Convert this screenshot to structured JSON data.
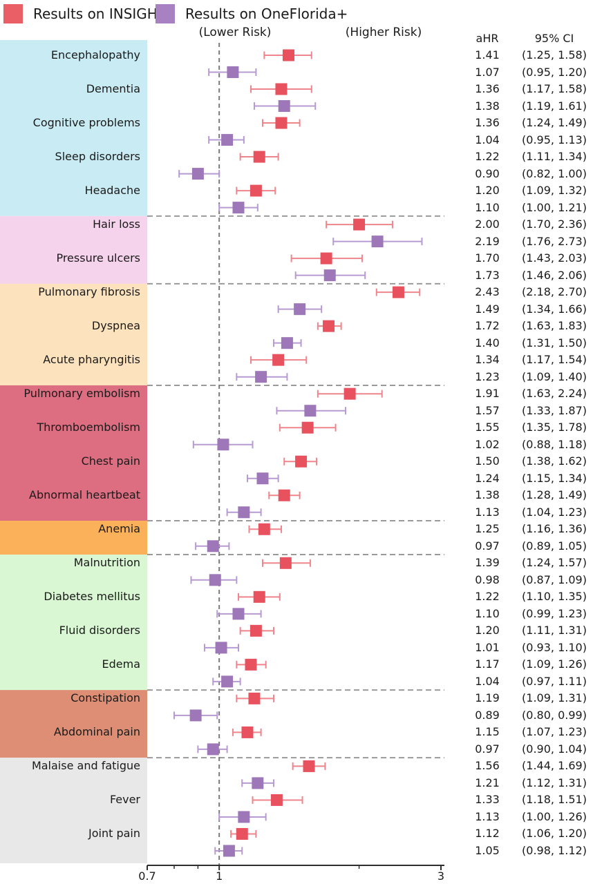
{
  "legend": {
    "items": [
      {
        "label": "Results on INSIGHT",
        "color": "#ea5f66"
      },
      {
        "label": "Results on OneFlorida+",
        "color": "#a781c1"
      }
    ]
  },
  "annotations": {
    "lower_risk": "(Lower Risk)",
    "higher_risk": "(Higher Risk)"
  },
  "table": {
    "ahr_header": "aHR",
    "ci_header": "95% CI"
  },
  "chart_data": {
    "type": "forest",
    "x_scale": "log",
    "xlim": [
      0.7,
      3
    ],
    "x_ticks": [
      {
        "value": 0.7,
        "label": "0.7"
      },
      {
        "value": 1,
        "label": "1"
      },
      {
        "value": 3,
        "label": "3"
      }
    ],
    "x_minor_ticks": [
      0.8,
      0.9,
      2
    ],
    "reference_line": 1,
    "grid": "dashed-group-separators",
    "legend_position": "top-left",
    "series": [
      {
        "name": "INSIGHT",
        "marker_color": "#e8525e",
        "whisker_color": "#ef858b"
      },
      {
        "name": "OneFlorida+",
        "marker_color": "#9e77b8",
        "whisker_color": "#b79ad2"
      }
    ],
    "groups": [
      {
        "band_color": "#c9ecf4",
        "conditions": [
          {
            "name": "Encephalopathy",
            "estimates": [
              [
                1.41,
                1.25,
                1.58
              ],
              [
                1.07,
                0.95,
                1.2
              ]
            ]
          },
          {
            "name": "Dementia",
            "estimates": [
              [
                1.36,
                1.17,
                1.58
              ],
              [
                1.38,
                1.19,
                1.61
              ]
            ]
          },
          {
            "name": "Cognitive problems",
            "estimates": [
              [
                1.36,
                1.24,
                1.49
              ],
              [
                1.04,
                0.95,
                1.13
              ]
            ]
          },
          {
            "name": "Sleep disorders",
            "estimates": [
              [
                1.22,
                1.11,
                1.34
              ],
              [
                0.9,
                0.82,
                1.0
              ]
            ]
          },
          {
            "name": "Headache",
            "estimates": [
              [
                1.2,
                1.09,
                1.32
              ],
              [
                1.1,
                1.0,
                1.21
              ]
            ]
          }
        ]
      },
      {
        "band_color": "#f5d3ec",
        "conditions": [
          {
            "name": "Hair loss",
            "estimates": [
              [
                2.0,
                1.7,
                2.36
              ],
              [
                2.19,
                1.76,
                2.73
              ]
            ]
          },
          {
            "name": "Pressure ulcers",
            "estimates": [
              [
                1.7,
                1.43,
                2.03
              ],
              [
                1.73,
                1.46,
                2.06
              ]
            ]
          }
        ]
      },
      {
        "band_color": "#fce3bd",
        "conditions": [
          {
            "name": "Pulmonary fibrosis",
            "estimates": [
              [
                2.43,
                2.18,
                2.7
              ],
              [
                1.49,
                1.34,
                1.66
              ]
            ]
          },
          {
            "name": "Dyspnea",
            "estimates": [
              [
                1.72,
                1.63,
                1.83
              ],
              [
                1.4,
                1.31,
                1.5
              ]
            ]
          },
          {
            "name": "Acute pharyngitis",
            "estimates": [
              [
                1.34,
                1.17,
                1.54
              ],
              [
                1.23,
                1.09,
                1.4
              ]
            ]
          }
        ]
      },
      {
        "band_color": "#dd6d80",
        "conditions": [
          {
            "name": "Pulmonary embolism",
            "estimates": [
              [
                1.91,
                1.63,
                2.24
              ],
              [
                1.57,
                1.33,
                1.87
              ]
            ]
          },
          {
            "name": "Thromboembolism",
            "estimates": [
              [
                1.55,
                1.35,
                1.78
              ],
              [
                1.02,
                0.88,
                1.18
              ]
            ]
          },
          {
            "name": "Chest pain",
            "estimates": [
              [
                1.5,
                1.38,
                1.62
              ],
              [
                1.24,
                1.15,
                1.34
              ]
            ]
          },
          {
            "name": "Abnormal heartbeat",
            "estimates": [
              [
                1.38,
                1.28,
                1.49
              ],
              [
                1.13,
                1.04,
                1.23
              ]
            ]
          }
        ]
      },
      {
        "band_color": "#fab159",
        "conditions": [
          {
            "name": "Anemia",
            "estimates": [
              [
                1.25,
                1.16,
                1.36
              ],
              [
                0.97,
                0.89,
                1.05
              ]
            ]
          }
        ]
      },
      {
        "band_color": "#d9f7d3",
        "conditions": [
          {
            "name": "Malnutrition",
            "estimates": [
              [
                1.39,
                1.24,
                1.57
              ],
              [
                0.98,
                0.87,
                1.09
              ]
            ]
          },
          {
            "name": "Diabetes mellitus",
            "estimates": [
              [
                1.22,
                1.1,
                1.35
              ],
              [
                1.1,
                0.99,
                1.23
              ]
            ]
          },
          {
            "name": "Fluid disorders",
            "estimates": [
              [
                1.2,
                1.11,
                1.31
              ],
              [
                1.01,
                0.93,
                1.1
              ]
            ]
          },
          {
            "name": "Edema",
            "estimates": [
              [
                1.17,
                1.09,
                1.26
              ],
              [
                1.04,
                0.97,
                1.11
              ]
            ]
          }
        ]
      },
      {
        "band_color": "#dd8e74",
        "conditions": [
          {
            "name": "Constipation",
            "estimates": [
              [
                1.19,
                1.09,
                1.31
              ],
              [
                0.89,
                0.8,
                0.99
              ]
            ]
          },
          {
            "name": "Abdominal pain",
            "estimates": [
              [
                1.15,
                1.07,
                1.23
              ],
              [
                0.97,
                0.9,
                1.04
              ]
            ]
          }
        ]
      },
      {
        "band_color": "#e8e8e8",
        "conditions": [
          {
            "name": "Malaise and fatigue",
            "estimates": [
              [
                1.56,
                1.44,
                1.69
              ],
              [
                1.21,
                1.12,
                1.31
              ]
            ]
          },
          {
            "name": "Fever",
            "estimates": [
              [
                1.33,
                1.18,
                1.51
              ],
              [
                1.13,
                1.0,
                1.26
              ]
            ]
          },
          {
            "name": "Joint pain",
            "estimates": [
              [
                1.12,
                1.06,
                1.2
              ],
              [
                1.05,
                0.98,
                1.12
              ]
            ]
          }
        ]
      }
    ]
  }
}
